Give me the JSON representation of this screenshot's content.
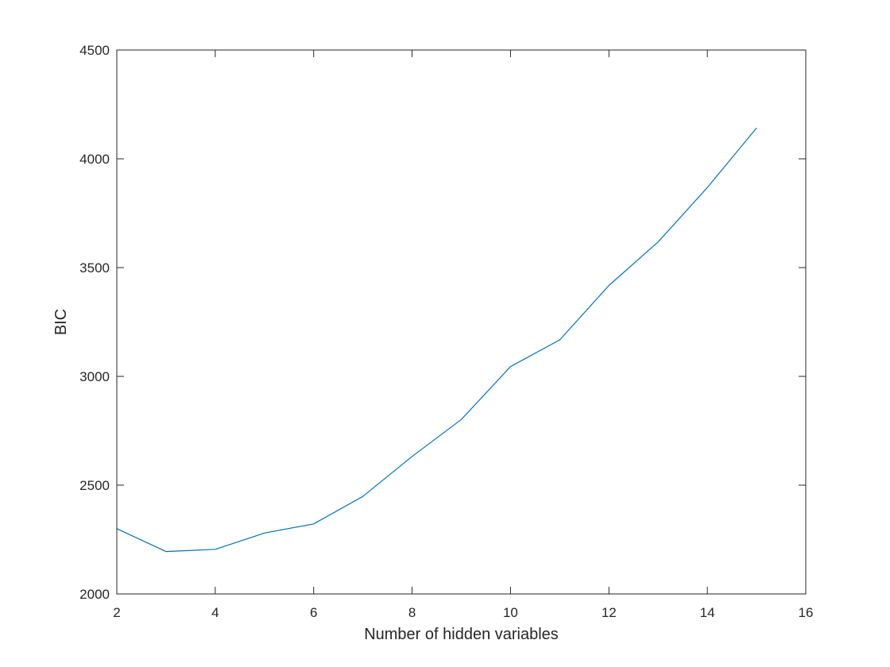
{
  "chart_data": {
    "type": "line",
    "title": "",
    "xlabel": "Number of hidden variables",
    "ylabel": "BIC",
    "xlim": [
      2,
      16
    ],
    "ylim": [
      2000,
      4500
    ],
    "xticks": [
      2,
      4,
      6,
      8,
      10,
      12,
      14,
      16
    ],
    "yticks": [
      2000,
      2500,
      3000,
      3500,
      4000,
      4500
    ],
    "grid": false,
    "legend": "none",
    "box": true,
    "series": [
      {
        "color": "#0072BD",
        "x": [
          2,
          3,
          4,
          5,
          6,
          7,
          8,
          9,
          10,
          11,
          12,
          13,
          14,
          15
        ],
        "y": [
          2300,
          2195,
          2205,
          2280,
          2322,
          2448,
          2632,
          2802,
          3045,
          3168,
          3418,
          3618,
          3868,
          4142
        ]
      }
    ]
  }
}
